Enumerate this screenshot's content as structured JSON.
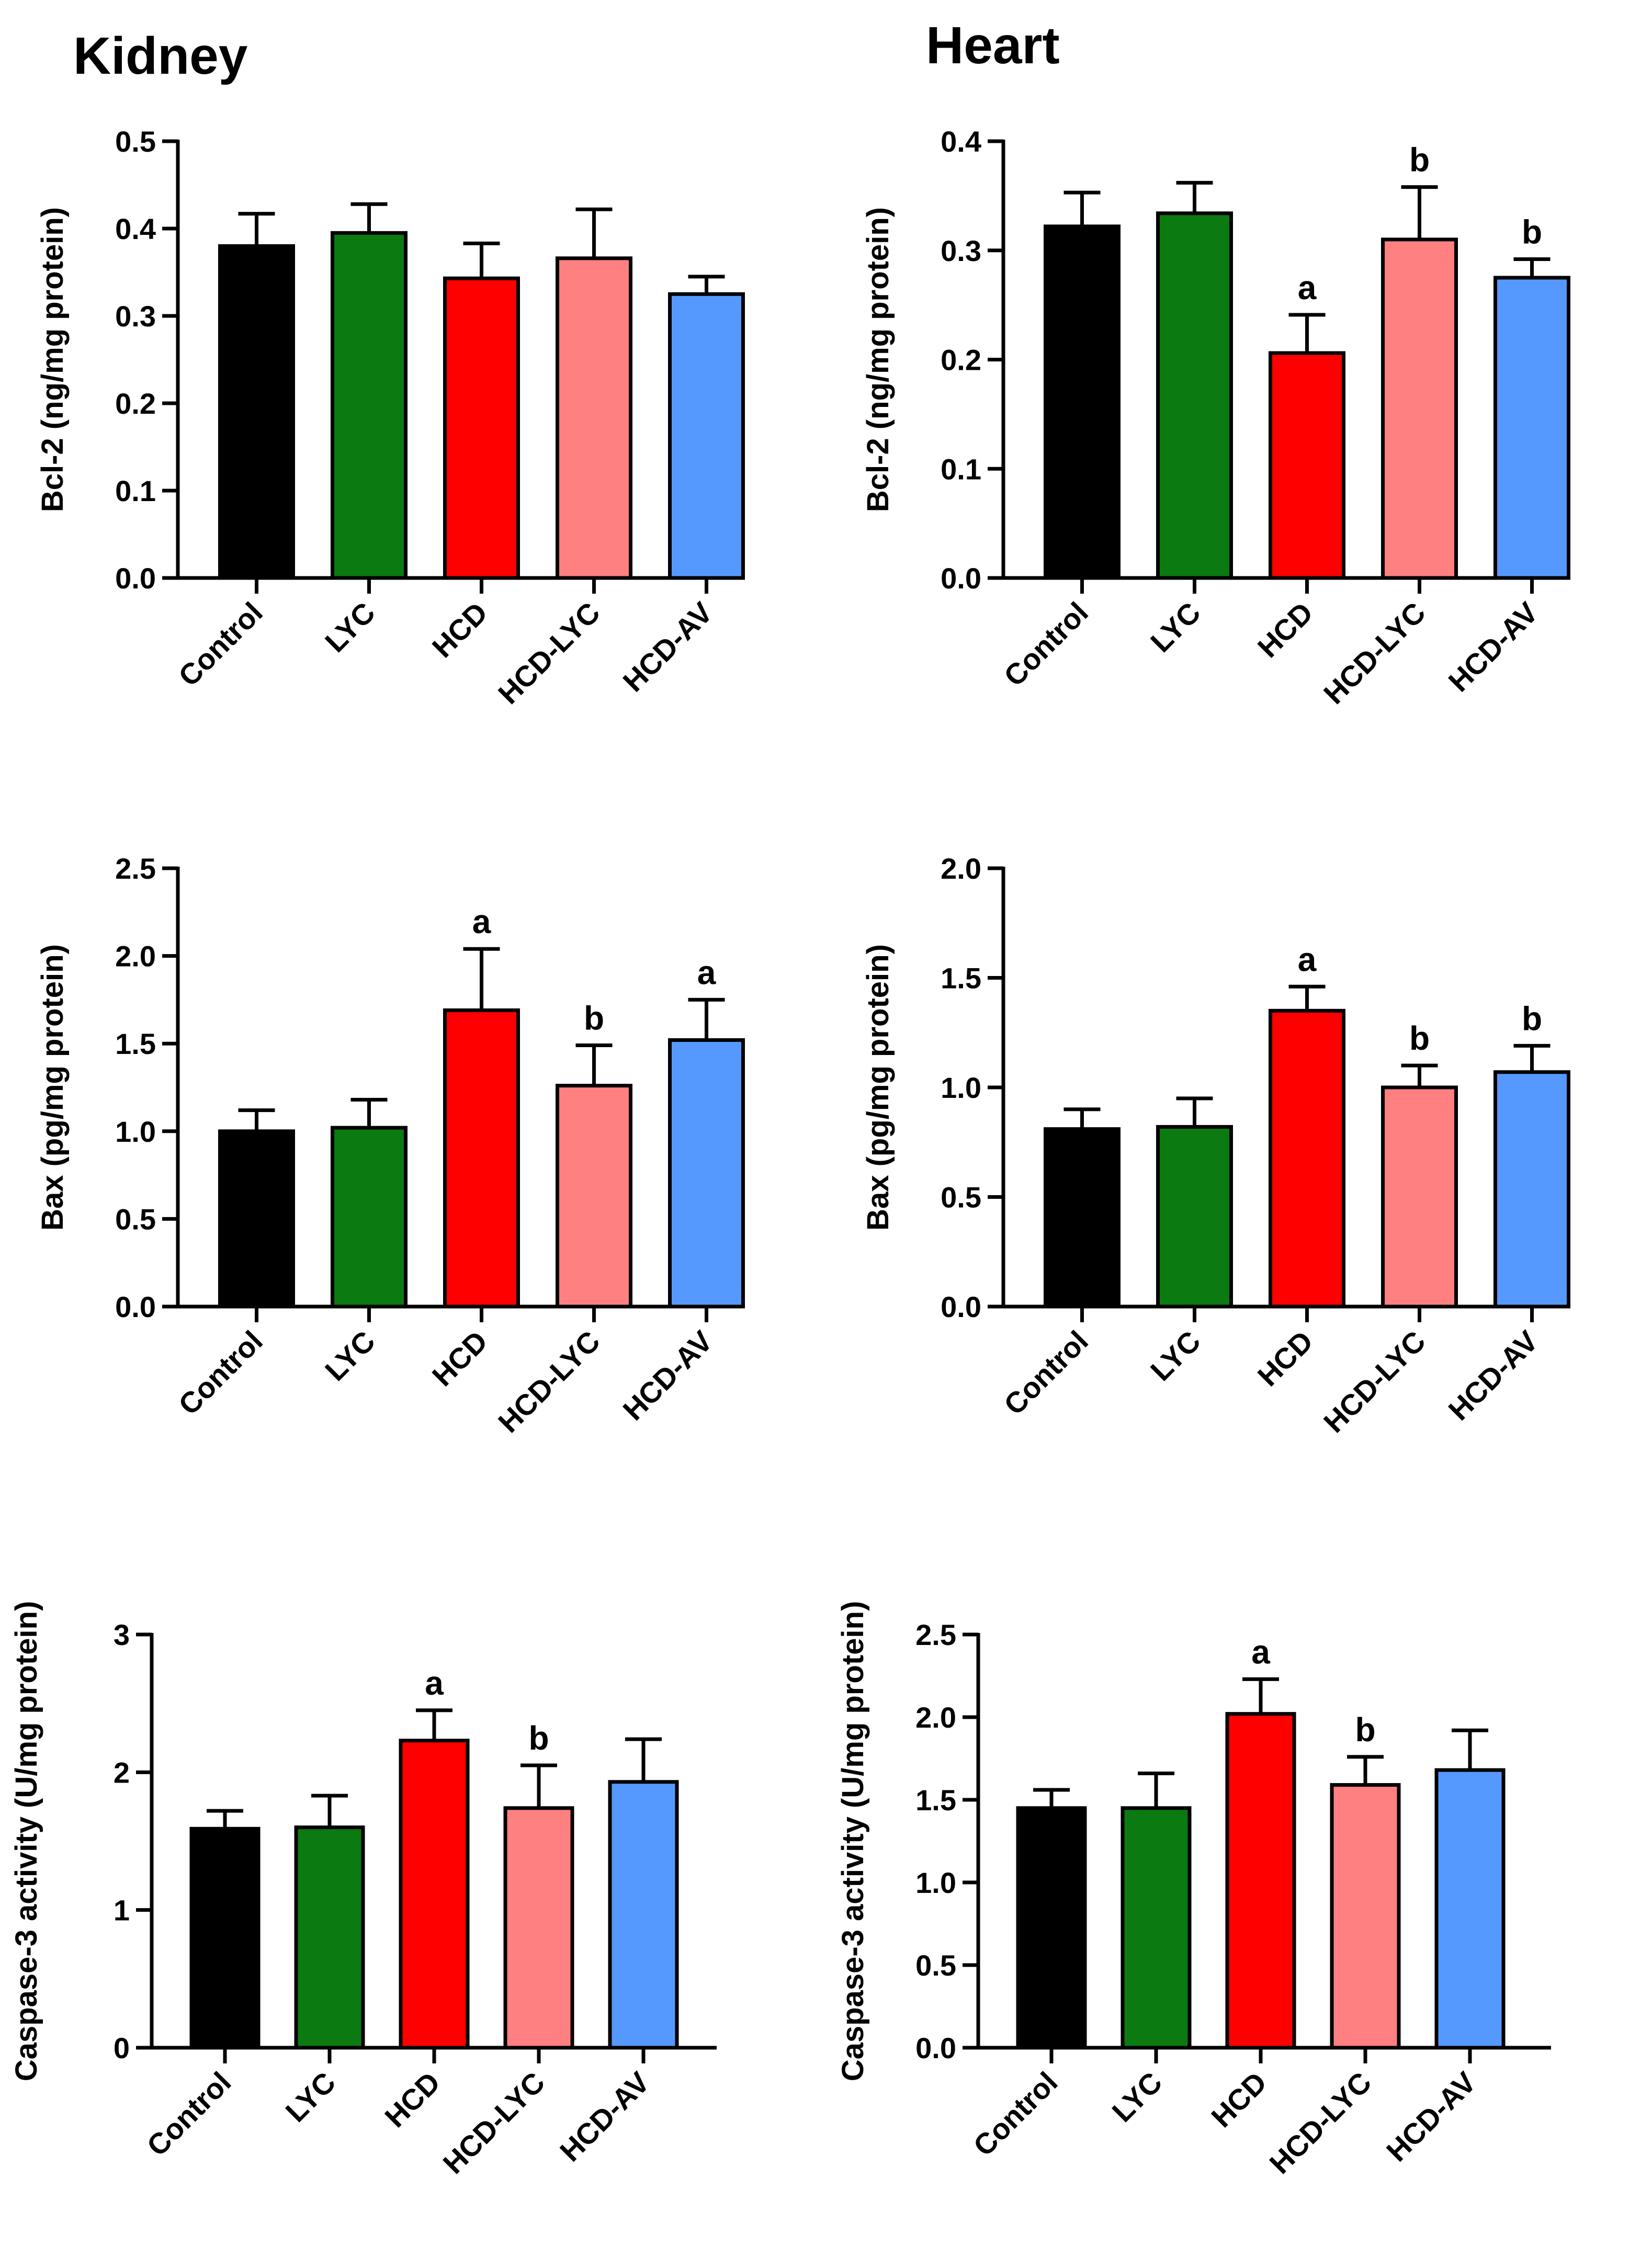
{
  "column_titles": [
    "Kidney",
    "Heart"
  ],
  "colors": {
    "Control": "#000000",
    "LYC": "#0b7a10",
    "HCD": "#ff0000",
    "HCD-LYC": "#ff8080",
    "HCD-AV": "#5599ff"
  },
  "chart_data": [
    {
      "type": "bar",
      "panel": "kidney-bcl2",
      "categories": [
        "Control",
        "LYC",
        "HCD",
        "HCD-LYC",
        "HCD-AV"
      ],
      "values": [
        0.38,
        0.395,
        0.343,
        0.366,
        0.325
      ],
      "errors": [
        0.037,
        0.033,
        0.04,
        0.056,
        0.02
      ],
      "significance": [
        "",
        "",
        "",
        "",
        ""
      ],
      "ylabel": "Bcl-2 (ng/mg protein)",
      "ylim": [
        0,
        0.5
      ],
      "yticks": [
        0.0,
        0.1,
        0.2,
        0.3,
        0.4,
        0.5
      ],
      "ytick_labels": [
        "0.0",
        "0.1",
        "0.2",
        "0.3",
        "0.4",
        "0.5"
      ]
    },
    {
      "type": "bar",
      "panel": "heart-bcl2",
      "categories": [
        "Control",
        "LYC",
        "HCD",
        "HCD-LYC",
        "HCD-AV"
      ],
      "values": [
        0.322,
        0.334,
        0.206,
        0.31,
        0.275
      ],
      "errors": [
        0.031,
        0.028,
        0.035,
        0.048,
        0.017
      ],
      "significance": [
        "",
        "",
        "a",
        "b",
        "b"
      ],
      "ylabel": "Bcl-2 (ng/mg protein)",
      "ylim": [
        0,
        0.4
      ],
      "yticks": [
        0.0,
        0.1,
        0.2,
        0.3,
        0.4
      ],
      "ytick_labels": [
        "0.0",
        "0.1",
        "0.2",
        "0.3",
        "0.4"
      ]
    },
    {
      "type": "bar",
      "panel": "kidney-bax",
      "categories": [
        "Control",
        "LYC",
        "HCD",
        "HCD-LYC",
        "HCD-AV"
      ],
      "values": [
        1.0,
        1.02,
        1.69,
        1.26,
        1.52
      ],
      "errors": [
        0.12,
        0.16,
        0.35,
        0.23,
        0.23
      ],
      "significance": [
        "",
        "",
        "a",
        "b",
        "a"
      ],
      "ylabel": "Bax (pg/mg protein)",
      "ylim": [
        0,
        2.5
      ],
      "yticks": [
        0.0,
        0.5,
        1.0,
        1.5,
        2.0,
        2.5
      ],
      "ytick_labels": [
        "0.0",
        "0.5",
        "1.0",
        "1.5",
        "2.0",
        "2.5"
      ]
    },
    {
      "type": "bar",
      "panel": "heart-bax",
      "categories": [
        "Control",
        "LYC",
        "HCD",
        "HCD-LYC",
        "HCD-AV"
      ],
      "values": [
        0.81,
        0.82,
        1.35,
        1.0,
        1.07
      ],
      "errors": [
        0.09,
        0.13,
        0.11,
        0.1,
        0.12
      ],
      "significance": [
        "",
        "",
        "a",
        "b",
        "b"
      ],
      "ylabel": "Bax (pg/mg protein)",
      "ylim": [
        0,
        2.0
      ],
      "yticks": [
        0.0,
        0.5,
        1.0,
        1.5,
        2.0
      ],
      "ytick_labels": [
        "0.0",
        "0.5",
        "1.0",
        "1.5",
        "2.0"
      ]
    },
    {
      "type": "bar",
      "panel": "kidney-caspase3",
      "categories": [
        "Control",
        "LYC",
        "HCD",
        "HCD-LYC",
        "HCD-AV"
      ],
      "values": [
        1.59,
        1.6,
        2.23,
        1.74,
        1.93
      ],
      "errors": [
        0.13,
        0.23,
        0.22,
        0.31,
        0.31
      ],
      "significance": [
        "",
        "",
        "a",
        "b",
        ""
      ],
      "ylabel": "Caspase-3 activity (U/mg protein)",
      "ylim": [
        0,
        3
      ],
      "yticks": [
        0,
        1,
        2,
        3
      ],
      "ytick_labels": [
        "0",
        "1",
        "2",
        "3"
      ]
    },
    {
      "type": "bar",
      "panel": "heart-caspase3",
      "categories": [
        "Control",
        "LYC",
        "HCD",
        "HCD-LYC",
        "HCD-AV"
      ],
      "values": [
        1.45,
        1.45,
        2.02,
        1.59,
        1.68
      ],
      "errors": [
        0.11,
        0.21,
        0.21,
        0.17,
        0.24
      ],
      "significance": [
        "",
        "",
        "a",
        "b",
        ""
      ],
      "ylabel": "Caspase-3 activity (U/mg protein)",
      "ylim": [
        0,
        2.5
      ],
      "yticks": [
        0.0,
        0.5,
        1.0,
        1.5,
        2.0,
        2.5
      ],
      "ytick_labels": [
        "0.0",
        "0.5",
        "1.0",
        "1.5",
        "2.0",
        "2.5"
      ]
    }
  ]
}
